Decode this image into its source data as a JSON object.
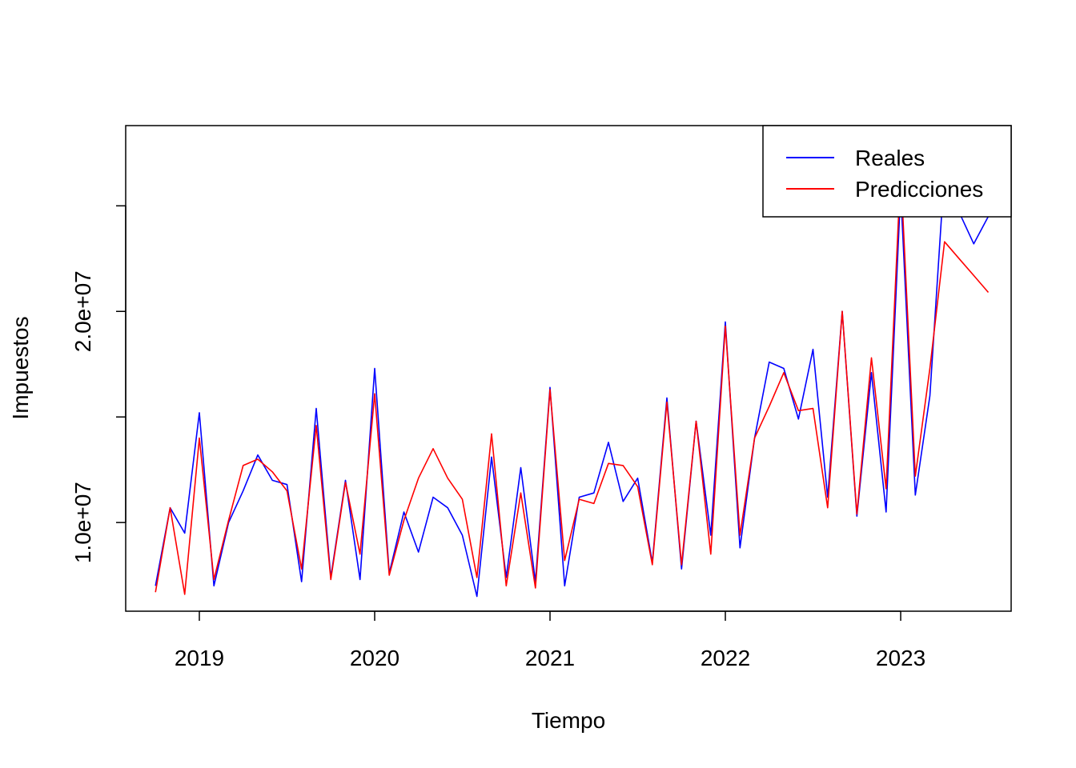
{
  "chart_data": {
    "type": "line",
    "title": "",
    "xlabel": "Tiempo",
    "ylabel": "Impuestos",
    "xlim": [
      2018.58,
      2023.63
    ],
    "ylim": [
      5800000,
      28800000
    ],
    "x_ticks": [
      {
        "value": 2019,
        "label": "2019"
      },
      {
        "value": 2020,
        "label": "2020"
      },
      {
        "value": 2021,
        "label": "2021"
      },
      {
        "value": 2022,
        "label": "2022"
      },
      {
        "value": 2023,
        "label": "2023"
      }
    ],
    "y_ticks": [
      {
        "value": 10000000,
        "label": "1.0e+07"
      },
      {
        "value": 15000000,
        "label": ""
      },
      {
        "value": 20000000,
        "label": "2.0e+07"
      },
      {
        "value": 25000000,
        "label": ""
      }
    ],
    "x_start": 2018.75,
    "x_step": 0.08333333,
    "grid": false,
    "legend_position": "top-right",
    "series": [
      {
        "name": "Reales",
        "color": "#0000ff",
        "values": [
          7000000,
          10700000,
          9500000,
          15200000,
          7000000,
          10000000,
          11500000,
          13200000,
          12000000,
          11800000,
          7200000,
          15400000,
          7400000,
          12000000,
          7300000,
          17300000,
          7600000,
          10500000,
          8600000,
          11200000,
          10700000,
          9400000,
          6500000,
          13100000,
          7400000,
          12600000,
          7200000,
          16400000,
          7000000,
          11200000,
          11400000,
          13800000,
          11000000,
          12100000,
          8100000,
          15900000,
          7800000,
          14800000,
          9400000,
          19500000,
          8800000,
          14000000,
          17600000,
          17300000,
          14900000,
          18200000,
          11200000,
          20000000,
          10300000,
          17100000,
          10500000,
          25700000,
          11300000,
          16000000,
          26700000,
          24700000,
          23200000,
          24500000
        ]
      },
      {
        "name": "Predicciones",
        "color": "#ff0000",
        "values": [
          6700000,
          10700000,
          6600000,
          14000000,
          7300000,
          10100000,
          12700000,
          13000000,
          12400000,
          11500000,
          7800000,
          14600000,
          7300000,
          11900000,
          8500000,
          16100000,
          7500000,
          10100000,
          12100000,
          13500000,
          12100000,
          11100000,
          7400000,
          14200000,
          7000000,
          11400000,
          6900000,
          16300000,
          8200000,
          11100000,
          10900000,
          12800000,
          12700000,
          11700000,
          8000000,
          15700000,
          8000000,
          14800000,
          8500000,
          19300000,
          9400000,
          14000000,
          15500000,
          17100000,
          15300000,
          15400000,
          10700000,
          20000000,
          10400000,
          17800000,
          11600000,
          26700000,
          12200000,
          17300000,
          23300000,
          22500000,
          21700000,
          20900000
        ]
      }
    ]
  }
}
